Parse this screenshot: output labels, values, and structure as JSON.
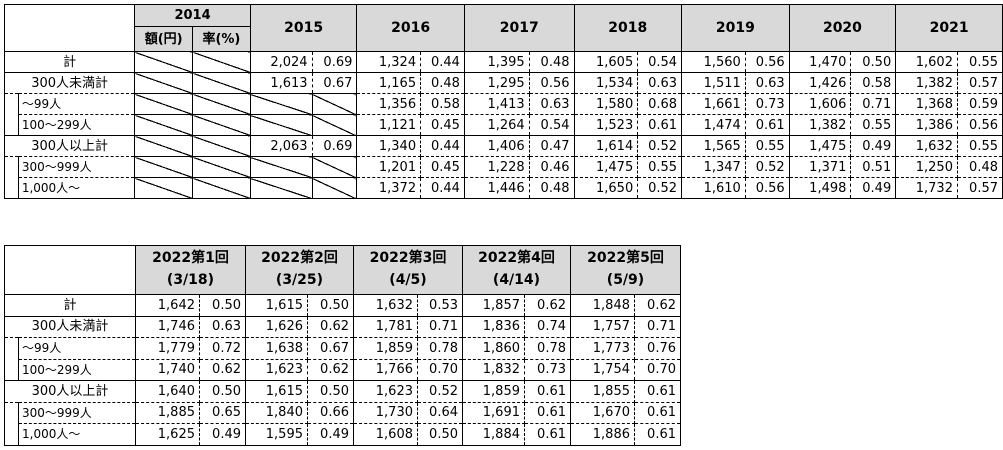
{
  "table1": {
    "col2014": "2014",
    "col2014_amount": "額(円)",
    "col2014_rate": "率(%)",
    "years": [
      "2015",
      "2016",
      "2017",
      "2018",
      "2019",
      "2020",
      "2021"
    ],
    "rows": [
      {
        "label": "計",
        "cells": [
          [
            "2,024",
            "0.69"
          ],
          [
            "1,324",
            "0.44"
          ],
          [
            "1,395",
            "0.48"
          ],
          [
            "1,605",
            "0.54"
          ],
          [
            "1,560",
            "0.56"
          ],
          [
            "1,470",
            "0.50"
          ],
          [
            "1,602",
            "0.55"
          ]
        ]
      },
      {
        "label": "300人未満計",
        "cells": [
          [
            "1,613",
            "0.67"
          ],
          [
            "1,165",
            "0.48"
          ],
          [
            "1,295",
            "0.56"
          ],
          [
            "1,534",
            "0.63"
          ],
          [
            "1,511",
            "0.63"
          ],
          [
            "1,426",
            "0.58"
          ],
          [
            "1,382",
            "0.57"
          ]
        ]
      },
      {
        "label": "～99人",
        "cells": [
          [
            "",
            ""
          ],
          [
            "1,356",
            "0.58"
          ],
          [
            "1,413",
            "0.63"
          ],
          [
            "1,580",
            "0.68"
          ],
          [
            "1,661",
            "0.73"
          ],
          [
            "1,606",
            "0.71"
          ],
          [
            "1,368",
            "0.59"
          ]
        ]
      },
      {
        "label": "100～299人",
        "cells": [
          [
            "",
            ""
          ],
          [
            "1,121",
            "0.45"
          ],
          [
            "1,264",
            "0.54"
          ],
          [
            "1,523",
            "0.61"
          ],
          [
            "1,474",
            "0.61"
          ],
          [
            "1,382",
            "0.55"
          ],
          [
            "1,386",
            "0.56"
          ]
        ]
      },
      {
        "label": "300人以上計",
        "cells": [
          [
            "2,063",
            "0.69"
          ],
          [
            "1,340",
            "0.44"
          ],
          [
            "1,406",
            "0.47"
          ],
          [
            "1,614",
            "0.52"
          ],
          [
            "1,565",
            "0.55"
          ],
          [
            "1,475",
            "0.49"
          ],
          [
            "1,632",
            "0.55"
          ]
        ]
      },
      {
        "label": "300～999人",
        "cells": [
          [
            "",
            ""
          ],
          [
            "1,201",
            "0.45"
          ],
          [
            "1,228",
            "0.46"
          ],
          [
            "1,475",
            "0.55"
          ],
          [
            "1,347",
            "0.52"
          ],
          [
            "1,371",
            "0.51"
          ],
          [
            "1,250",
            "0.48"
          ]
        ]
      },
      {
        "label": "1,000人～",
        "cells": [
          [
            "",
            ""
          ],
          [
            "1,372",
            "0.44"
          ],
          [
            "1,446",
            "0.48"
          ],
          [
            "1,650",
            "0.52"
          ],
          [
            "1,610",
            "0.56"
          ],
          [
            "1,498",
            "0.49"
          ],
          [
            "1,732",
            "0.57"
          ]
        ]
      }
    ]
  },
  "table2": {
    "headers": [
      {
        "title": "2022第1回",
        "date": "(3/18)"
      },
      {
        "title": "2022第2回",
        "date": "(3/25)"
      },
      {
        "title": "2022第3回",
        "date": "(4/5)"
      },
      {
        "title": "2022第4回",
        "date": "(4/14)"
      },
      {
        "title": "2022第5回",
        "date": "(5/9)"
      }
    ],
    "rows": [
      {
        "label": "計",
        "cells": [
          [
            "1,642",
            "0.50"
          ],
          [
            "1,615",
            "0.50"
          ],
          [
            "1,632",
            "0.53"
          ],
          [
            "1,857",
            "0.62"
          ],
          [
            "1,848",
            "0.62"
          ]
        ]
      },
      {
        "label": "300人未満計",
        "cells": [
          [
            "1,746",
            "0.63"
          ],
          [
            "1,626",
            "0.62"
          ],
          [
            "1,781",
            "0.71"
          ],
          [
            "1,836",
            "0.74"
          ],
          [
            "1,757",
            "0.71"
          ]
        ]
      },
      {
        "label": "～99人",
        "cells": [
          [
            "1,779",
            "0.72"
          ],
          [
            "1,638",
            "0.67"
          ],
          [
            "1,859",
            "0.78"
          ],
          [
            "1,860",
            "0.78"
          ],
          [
            "1,773",
            "0.76"
          ]
        ]
      },
      {
        "label": "100～299人",
        "cells": [
          [
            "1,740",
            "0.62"
          ],
          [
            "1,623",
            "0.62"
          ],
          [
            "1,766",
            "0.70"
          ],
          [
            "1,832",
            "0.73"
          ],
          [
            "1,754",
            "0.70"
          ]
        ]
      },
      {
        "label": "300人以上計",
        "cells": [
          [
            "1,640",
            "0.50"
          ],
          [
            "1,615",
            "0.50"
          ],
          [
            "1,623",
            "0.52"
          ],
          [
            "1,859",
            "0.61"
          ],
          [
            "1,855",
            "0.61"
          ]
        ]
      },
      {
        "label": "300～999人",
        "cells": [
          [
            "1,885",
            "0.65"
          ],
          [
            "1,840",
            "0.66"
          ],
          [
            "1,730",
            "0.64"
          ],
          [
            "1,691",
            "0.61"
          ],
          [
            "1,670",
            "0.61"
          ]
        ]
      },
      {
        "label": "1,000人～",
        "cells": [
          [
            "1,625",
            "0.49"
          ],
          [
            "1,595",
            "0.49"
          ],
          [
            "1,608",
            "0.50"
          ],
          [
            "1,884",
            "0.61"
          ],
          [
            "1,886",
            "0.61"
          ]
        ]
      }
    ]
  }
}
